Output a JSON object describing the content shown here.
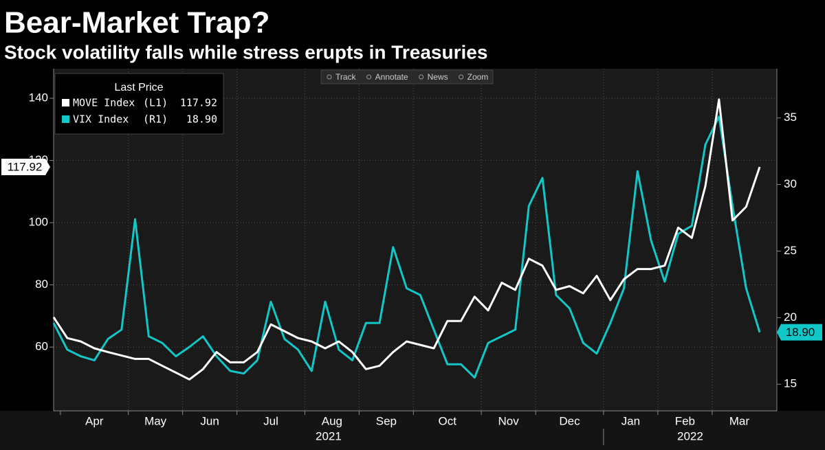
{
  "chart_data": {
    "type": "line",
    "title": "Bear-Market Trap?",
    "subtitle": "Stock volatility falls while stress erupts in Treasuries",
    "toolbar": [
      "Track",
      "Annotate",
      "News",
      "Zoom"
    ],
    "legend_title": "Last Price",
    "categories": [
      null,
      "Apr",
      null,
      null,
      null,
      null,
      "May",
      null,
      null,
      null,
      "Jun",
      null,
      null,
      null,
      "Jul",
      null,
      null,
      null,
      null,
      "Aug",
      null,
      null,
      null,
      "Sep",
      null,
      null,
      null,
      "Oct",
      null,
      null,
      null,
      null,
      "Nov",
      null,
      null,
      null,
      "Dec",
      null,
      null,
      null,
      null,
      "Jan",
      null,
      null,
      null,
      "Feb",
      null,
      null,
      null,
      "Mar",
      null,
      null,
      null
    ],
    "category_years": [
      null,
      "2021",
      null,
      null,
      null,
      null,
      null,
      null,
      null,
      null,
      null,
      null,
      null,
      null,
      null,
      null,
      null,
      null,
      null,
      null,
      null,
      null,
      null,
      null,
      null,
      null,
      null,
      null,
      null,
      null,
      null,
      null,
      null,
      null,
      null,
      null,
      null,
      null,
      null,
      null,
      null,
      "2022",
      null,
      null,
      null,
      null,
      null,
      null,
      null,
      null,
      null,
      null,
      null
    ],
    "ylim": [
      39.5,
      149.5
    ],
    "yticks": [
      60,
      80,
      100,
      120,
      140
    ],
    "y2lim": [
      13,
      38.7
    ],
    "y2ticks": [
      15,
      20,
      25,
      30,
      35
    ],
    "grid": true,
    "series": [
      {
        "name": "MOVE Index",
        "legend_tag": "(L1)",
        "last_label": "117.92",
        "color": "#ffffff",
        "axis": "y",
        "values": [
          69.6,
          62.9,
          61.8,
          59.6,
          58.4,
          57.3,
          56.2,
          56.2,
          54,
          51.8,
          49.6,
          52.9,
          58.4,
          55.1,
          55.1,
          58.4,
          67.3,
          65.1,
          62.9,
          61.8,
          59.6,
          61.8,
          58.4,
          52.9,
          54,
          58.4,
          61.8,
          60.7,
          59.6,
          68.4,
          68.4,
          76.2,
          71.8,
          80.7,
          78.4,
          88.4,
          86.2,
          78.4,
          79.6,
          77.3,
          82.9,
          75.1,
          81.8,
          85.1,
          85.1,
          86.2,
          98.4,
          95.1,
          111.8,
          139.6,
          100.7,
          105.1,
          117.92
        ]
      },
      {
        "name": "VIX Index",
        "legend_tag": "(R1)",
        "last_label": "18.90",
        "color": "#12c7c7",
        "axis": "y2",
        "values": [
          19.6,
          17.6,
          17.1,
          16.8,
          18.4,
          19.1,
          27.4,
          18.6,
          18.1,
          17.1,
          17.8,
          18.6,
          17.1,
          16,
          15.8,
          16.8,
          21.2,
          18.4,
          17.6,
          16,
          21.2,
          17.6,
          16.8,
          19.6,
          19.6,
          25.3,
          22.2,
          21.7,
          19.1,
          16.5,
          16.5,
          15.5,
          18.1,
          18.6,
          19.1,
          28.4,
          30.5,
          21.7,
          20.7,
          18.1,
          17.3,
          19.6,
          22.2,
          31,
          25.8,
          22.7,
          26.3,
          26.9,
          33,
          35.1,
          28.4,
          22.2,
          18.9
        ]
      }
    ]
  }
}
